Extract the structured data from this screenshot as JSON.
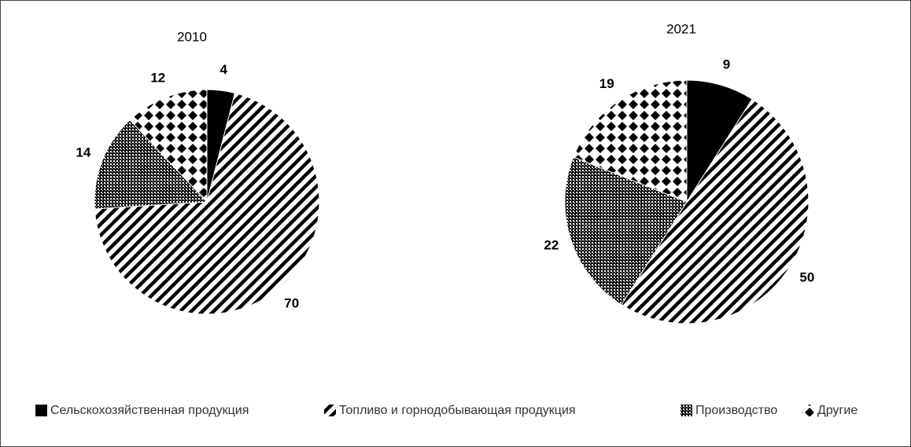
{
  "chart_data": {
    "type": "pie",
    "categories": [
      "Сельскохозяйственная продукция",
      "Топливо и горнодобывающая продукция",
      "Производство",
      "Другие"
    ],
    "series": [
      {
        "name": "2010",
        "values": [
          4,
          70,
          14,
          12
        ]
      },
      {
        "name": "2021",
        "values": [
          9,
          50,
          22,
          19
        ]
      }
    ]
  }
}
